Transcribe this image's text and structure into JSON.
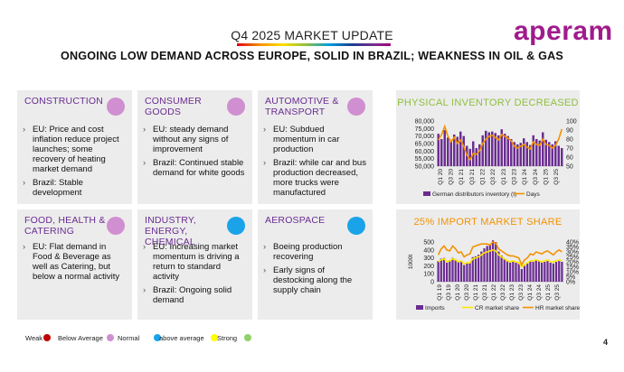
{
  "header": {
    "title": "Q4 2025 MARKET UPDATE",
    "subtitle": "ONGOING LOW DEMAND ACROSS EUROPE, SOLID IN BRAZIL; WEAKNESS IN OIL & GAS",
    "logo": "aperam"
  },
  "sectors": [
    {
      "title": "CONSTRUCTION",
      "status": "below_average",
      "bullets": [
        "EU: Price and cost inflation reduce project launches; some recovery of heating market demand",
        "Brazil: Stable development"
      ]
    },
    {
      "title": "CONSUMER GOODS",
      "status": "below_average",
      "bullets": [
        "EU: steady demand without any signs of improvement",
        "Brazil: Continued stable demand for white goods"
      ]
    },
    {
      "title": "AUTOMOTIVE & TRANSPORT",
      "status": "below_average",
      "bullets": [
        "EU: Subdued momentum in car production",
        "Brazil: while car and bus production decreased, more trucks were manufactured"
      ]
    },
    {
      "title": "FOOD, HEALTH & CATERING",
      "status": "below_average",
      "bullets": [
        "EU: Flat demand in Food & Beverage as well as Catering, but below a normal activity"
      ]
    },
    {
      "title": "INDUSTRY, ENERGY, CHEMICAL",
      "status": "normal",
      "bullets": [
        "EU: Increasing market momentum is driving a return to standard activity",
        "Brazil: Ongoing solid demand"
      ]
    },
    {
      "title": "AEROSPACE",
      "status": "normal",
      "bullets": [
        "Boeing production recovering",
        "Early signs of destocking along the supply chain"
      ]
    }
  ],
  "status_colors": {
    "weak": "#c00000",
    "below_average": "#d08fd0",
    "normal": "#1aa3e8",
    "above_average": "#ffff00",
    "strong": "#8fd16a"
  },
  "legend": {
    "items": [
      {
        "label": "Weak",
        "color": "#c00000"
      },
      {
        "label": "Below Average",
        "color": "#d08fd0"
      },
      {
        "label": "Normal",
        "color": "#1aa3e8"
      },
      {
        "label": "above average",
        "color": "#ffff00"
      },
      {
        "label": "Strong",
        "color": "#8fd16a"
      }
    ]
  },
  "page_number": "4",
  "chart_data": [
    {
      "type": "bar",
      "title": "PHYSICAL INVENTORY DECREASED",
      "x_tick_labels": [
        "Q1 20",
        "Q3 20",
        "Q1 21",
        "Q3 21",
        "Q1 22",
        "Q3 22",
        "Q1 23",
        "Q3 23",
        "Q1 24",
        "Q3 24",
        "Q1 25",
        "Q3 25"
      ],
      "ylim_left": [
        50000,
        80000
      ],
      "yticks_left": [
        "80,000",
        "75,000",
        "70,000",
        "65,000",
        "60,000",
        "55,000",
        "50,000"
      ],
      "ylim_right": [
        50,
        100
      ],
      "yticks_right": [
        "100",
        "90",
        "80",
        "70",
        "60",
        "50"
      ],
      "series": [
        {
          "name": "German distributors inventory (t)",
          "axis": "left",
          "color": "#6a2c91",
          "values": [
            71500,
            68000,
            74000,
            69000,
            67000,
            71000,
            69500,
            73000,
            70000,
            63500,
            61500,
            66500,
            62000,
            64500,
            70500,
            73500,
            72500,
            73000,
            72000,
            70500,
            74500,
            71500,
            70000,
            68000,
            66000,
            64500,
            65500,
            68500,
            66000,
            64000,
            70500,
            68000,
            67000,
            72500,
            67500,
            66000,
            64500,
            66500,
            63500,
            62000
          ]
        },
        {
          "name": "Days",
          "axis": "right",
          "color": "#f39200",
          "values": [
            79,
            85,
            94,
            83,
            77,
            82,
            75,
            79,
            72,
            62,
            57,
            64,
            63,
            67,
            75,
            80,
            83,
            84,
            82,
            79,
            85,
            83,
            81,
            78,
            72,
            70,
            72,
            74,
            71,
            69,
            77,
            74,
            73,
            80,
            74,
            73,
            70,
            73,
            80,
            91
          ]
        }
      ],
      "legend": [
        "German distributors inventory (t)",
        "Days"
      ]
    },
    {
      "type": "bar",
      "title": "25% IMPORT MARKET SHARE",
      "x_tick_labels": [
        "Q1 19",
        "Q3 19",
        "Q1 20",
        "Q3 20",
        "Q1 21",
        "Q3 21",
        "Q1 22",
        "Q3 22",
        "Q1 23",
        "Q3 23",
        "Q1 24",
        "Q3 24",
        "Q1 25",
        "Q3 25"
      ],
      "ylim_left": [
        0,
        500
      ],
      "yticks_left": [
        "500",
        "400",
        "300",
        "200",
        "100",
        "0"
      ],
      "ylabel_left": "1000t",
      "ylim_right": [
        0,
        40
      ],
      "yticks_right": [
        "40%",
        "35%",
        "30%",
        "25%",
        "20%",
        "15%",
        "10%",
        "5%",
        "0%"
      ],
      "series": [
        {
          "name": "Imports",
          "axis": "left",
          "color": "#6a2c91",
          "values": [
            260,
            290,
            300,
            240,
            270,
            300,
            280,
            250,
            260,
            210,
            230,
            240,
            310,
            320,
            340,
            380,
            420,
            450,
            470,
            520,
            500,
            380,
            330,
            290,
            260,
            240,
            250,
            240,
            230,
            160,
            200,
            230,
            260,
            250,
            270,
            260,
            240,
            250,
            260,
            240,
            230,
            250,
            260,
            250
          ]
        },
        {
          "name": "CR market share",
          "axis": "right",
          "color": "#ffe600",
          "values": [
            20,
            22,
            23,
            20,
            21,
            23,
            22,
            20,
            21,
            18,
            19,
            19,
            23,
            24,
            25,
            27,
            29,
            30,
            31,
            32,
            31,
            27,
            25,
            23,
            21,
            20,
            21,
            20,
            19,
            15,
            17,
            19,
            21,
            21,
            22,
            21,
            20,
            21,
            22,
            20,
            20,
            21,
            22,
            21
          ]
        },
        {
          "name": "HR market share",
          "axis": "right",
          "color": "#f39200",
          "values": [
            27,
            33,
            36,
            32,
            31,
            36,
            33,
            29,
            30,
            25,
            27,
            28,
            35,
            36,
            37,
            38,
            38,
            38,
            37,
            40,
            39,
            33,
            31,
            29,
            27,
            26,
            26,
            25,
            24,
            17,
            22,
            24,
            28,
            27,
            30,
            29,
            28,
            30,
            31,
            29,
            27,
            30,
            32,
            30
          ]
        }
      ],
      "legend": [
        "Imports",
        "CR market share",
        "HR market share"
      ]
    }
  ]
}
